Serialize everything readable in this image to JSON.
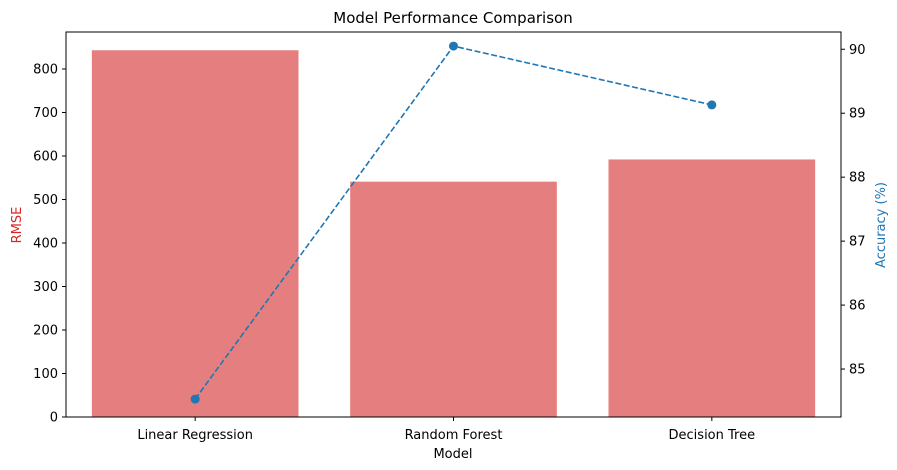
{
  "chart_data": {
    "type": "bar",
    "title": "Model Performance Comparison",
    "xlabel": "Model",
    "categories": [
      "Linear Regression",
      "Random Forest",
      "Decision Tree"
    ],
    "grid": false,
    "y_left": {
      "label": "RMSE",
      "range": [
        0,
        885
      ],
      "ticks": [
        0,
        100,
        200,
        300,
        400,
        500,
        600,
        700,
        800
      ],
      "color": "#d62728"
    },
    "y_right": {
      "label": "Accuracy (%)",
      "range": [
        84.25,
        90.27
      ],
      "ticks": [
        85,
        86,
        87,
        88,
        89,
        90
      ],
      "color": "#1f77b4"
    },
    "series": [
      {
        "type": "bar",
        "axis": "left",
        "color": "#e57e7e",
        "values": [
          843,
          541,
          592
        ]
      },
      {
        "type": "line",
        "axis": "right",
        "style": "dashed",
        "marker": "circle",
        "color": "#1f77b4",
        "values": [
          84.53,
          90.05,
          89.13
        ]
      }
    ]
  }
}
